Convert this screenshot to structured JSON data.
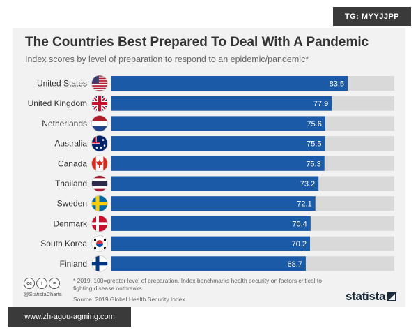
{
  "badges": {
    "top_right": "TG: MYYJJPP",
    "bottom_left": "www.zh-agou-agming.com"
  },
  "colors": {
    "bar": "#1b5aa6",
    "track": "#d9d9d9",
    "card_bg": "#f2f2f2",
    "value_text": "#ffffff"
  },
  "chart_data": {
    "type": "bar",
    "orientation": "horizontal",
    "title": "The Countries Best Prepared To Deal With A Pandemic",
    "subtitle": "Index scores by level of preparation to respond to an epidemic/pandemic*",
    "categories": [
      "United States",
      "United Kingdom",
      "Netherlands",
      "Australia",
      "Canada",
      "Thailand",
      "Sweden",
      "Denmark",
      "South Korea",
      "Finland"
    ],
    "values": [
      83.5,
      77.9,
      75.6,
      75.5,
      75.3,
      73.2,
      72.1,
      70.4,
      70.2,
      68.7
    ],
    "flag_icons": [
      "us-flag-icon",
      "uk-flag-icon",
      "netherlands-flag-icon",
      "australia-flag-icon",
      "canada-flag-icon",
      "thailand-flag-icon",
      "sweden-flag-icon",
      "denmark-flag-icon",
      "south-korea-flag-icon",
      "finland-flag-icon"
    ],
    "xlim": [
      0,
      100
    ],
    "data_labels": true,
    "grid": false,
    "legend": "none"
  },
  "footer": {
    "footnote": "* 2019. 100=greater level of preparation. Index benchmarks health security on factors critical to fighting disease outbreaks.",
    "source": "Source: 2019 Global Health Security Index",
    "cc_handle": "@StatistaCharts",
    "brand": "statista"
  }
}
